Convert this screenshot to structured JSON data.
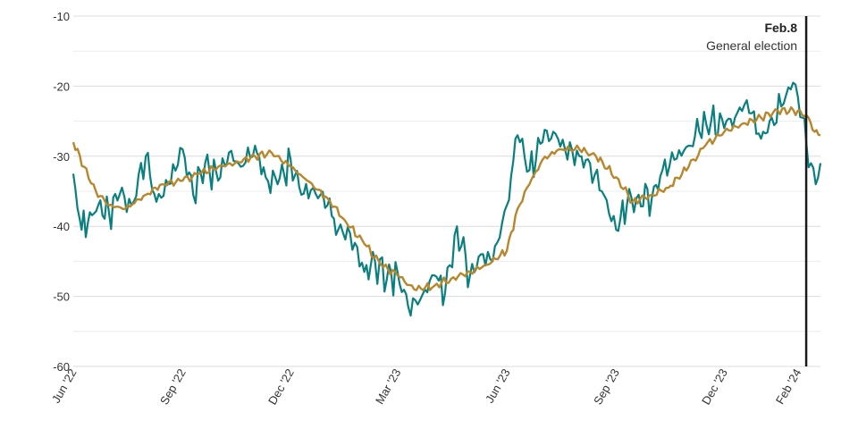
{
  "chart_data": {
    "type": "line",
    "title": "",
    "xlabel": "",
    "ylabel": "",
    "ylim": [
      -60,
      -10
    ],
    "yticks": [
      -10,
      -20,
      -30,
      -40,
      -50,
      -60
    ],
    "yticks_labeled": [
      -10,
      -20,
      -30,
      -40,
      -50,
      -60
    ],
    "grid": true,
    "xlim": [
      "2022-06-01",
      "2024-02-20"
    ],
    "xticks": [
      {
        "date": "2022-06-01",
        "label": "Jun '22"
      },
      {
        "date": "2022-09-01",
        "label": "Sep '22"
      },
      {
        "date": "2022-12-01",
        "label": "Dec '22"
      },
      {
        "date": "2023-03-01",
        "label": "Mar '23"
      },
      {
        "date": "2023-06-01",
        "label": "Jun '23"
      },
      {
        "date": "2023-09-01",
        "label": "Sep '23"
      },
      {
        "date": "2023-12-01",
        "label": "Dec '23"
      },
      {
        "date": "2024-02-01",
        "label": "Feb '24"
      }
    ],
    "annotation": {
      "date": "2024-02-08",
      "title": "Feb.8",
      "subtitle": "General election",
      "color": "#1a1a1a"
    },
    "series": [
      {
        "color": "#0a7f7f",
        "points": [
          [
            "2022-06-01",
            -32.5
          ],
          [
            "2022-06-08",
            -40.5
          ],
          [
            "2022-06-15",
            -38.0
          ],
          [
            "2022-06-22",
            -37.0
          ],
          [
            "2022-07-01",
            -38.0
          ],
          [
            "2022-07-10",
            -35.5
          ],
          [
            "2022-07-20",
            -37.0
          ],
          [
            "2022-08-01",
            -30.0
          ],
          [
            "2022-08-10",
            -36.5
          ],
          [
            "2022-08-20",
            -34.0
          ],
          [
            "2022-09-01",
            -29.0
          ],
          [
            "2022-09-10",
            -35.5
          ],
          [
            "2022-09-20",
            -31.0
          ],
          [
            "2022-10-01",
            -33.5
          ],
          [
            "2022-10-10",
            -29.5
          ],
          [
            "2022-10-20",
            -31.5
          ],
          [
            "2022-11-01",
            -28.5
          ],
          [
            "2022-11-10",
            -33.0
          ],
          [
            "2022-11-20",
            -34.0
          ],
          [
            "2022-12-01",
            -30.5
          ],
          [
            "2022-12-10",
            -35.5
          ],
          [
            "2022-12-20",
            -34.5
          ],
          [
            "2023-01-01",
            -37.0
          ],
          [
            "2023-01-10",
            -40.5
          ],
          [
            "2023-01-20",
            -41.0
          ],
          [
            "2023-02-01",
            -46.5
          ],
          [
            "2023-02-10",
            -45.0
          ],
          [
            "2023-02-20",
            -47.5
          ],
          [
            "2023-03-01",
            -46.5
          ],
          [
            "2023-03-10",
            -51.5
          ],
          [
            "2023-03-20",
            -50.5
          ],
          [
            "2023-04-01",
            -47.0
          ],
          [
            "2023-04-10",
            -49.5
          ],
          [
            "2023-04-20",
            -40.0
          ],
          [
            "2023-05-01",
            -47.0
          ],
          [
            "2023-05-10",
            -44.0
          ],
          [
            "2023-05-20",
            -45.0
          ],
          [
            "2023-06-01",
            -37.0
          ],
          [
            "2023-06-10",
            -27.0
          ],
          [
            "2023-06-20",
            -32.0
          ],
          [
            "2023-07-01",
            -28.0
          ],
          [
            "2023-07-10",
            -26.5
          ],
          [
            "2023-07-20",
            -29.0
          ],
          [
            "2023-08-01",
            -30.0
          ],
          [
            "2023-08-10",
            -31.0
          ],
          [
            "2023-08-20",
            -35.0
          ],
          [
            "2023-09-01",
            -40.5
          ],
          [
            "2023-09-10",
            -37.0
          ],
          [
            "2023-09-20",
            -35.5
          ],
          [
            "2023-10-01",
            -36.0
          ],
          [
            "2023-10-10",
            -32.0
          ],
          [
            "2023-10-20",
            -30.5
          ],
          [
            "2023-11-01",
            -28.5
          ],
          [
            "2023-11-10",
            -26.5
          ],
          [
            "2023-11-20",
            -25.0
          ],
          [
            "2023-12-01",
            -26.0
          ],
          [
            "2023-12-10",
            -24.5
          ],
          [
            "2023-12-20",
            -22.0
          ],
          [
            "2024-01-01",
            -27.5
          ],
          [
            "2024-01-10",
            -24.5
          ],
          [
            "2024-01-20",
            -22.5
          ],
          [
            "2024-01-28",
            -19.5
          ],
          [
            "2024-02-01",
            -21.5
          ],
          [
            "2024-02-05",
            -24.5
          ],
          [
            "2024-02-08",
            -28.0
          ],
          [
            "2024-02-12",
            -31.0
          ],
          [
            "2024-02-16",
            -34.0
          ],
          [
            "2024-02-20",
            -31.0
          ]
        ]
      },
      {
        "color": "#b8862b",
        "points": [
          [
            "2022-06-01",
            -28.0
          ],
          [
            "2022-06-10",
            -31.5
          ],
          [
            "2022-06-20",
            -35.0
          ],
          [
            "2022-07-01",
            -37.0
          ],
          [
            "2022-07-15",
            -37.5
          ],
          [
            "2022-08-01",
            -35.5
          ],
          [
            "2022-08-15",
            -34.0
          ],
          [
            "2022-09-01",
            -33.5
          ],
          [
            "2022-09-15",
            -32.5
          ],
          [
            "2022-10-01",
            -31.5
          ],
          [
            "2022-10-15",
            -31.0
          ],
          [
            "2022-11-01",
            -30.0
          ],
          [
            "2022-11-15",
            -29.5
          ],
          [
            "2022-12-01",
            -31.5
          ],
          [
            "2022-12-15",
            -33.5
          ],
          [
            "2023-01-01",
            -36.0
          ],
          [
            "2023-01-15",
            -39.0
          ],
          [
            "2023-02-01",
            -42.5
          ],
          [
            "2023-02-15",
            -45.5
          ],
          [
            "2023-03-01",
            -47.0
          ],
          [
            "2023-03-15",
            -49.0
          ],
          [
            "2023-04-01",
            -48.5
          ],
          [
            "2023-04-15",
            -47.5
          ],
          [
            "2023-05-01",
            -46.5
          ],
          [
            "2023-05-15",
            -45.5
          ],
          [
            "2023-06-01",
            -43.5
          ],
          [
            "2023-06-10",
            -37.5
          ],
          [
            "2023-06-20",
            -34.0
          ],
          [
            "2023-07-01",
            -30.5
          ],
          [
            "2023-07-15",
            -29.0
          ],
          [
            "2023-08-01",
            -29.0
          ],
          [
            "2023-08-15",
            -30.0
          ],
          [
            "2023-09-01",
            -33.0
          ],
          [
            "2023-09-15",
            -36.5
          ],
          [
            "2023-10-01",
            -35.5
          ],
          [
            "2023-10-15",
            -34.5
          ],
          [
            "2023-11-01",
            -31.5
          ],
          [
            "2023-11-15",
            -28.5
          ],
          [
            "2023-12-01",
            -26.5
          ],
          [
            "2023-12-15",
            -25.5
          ],
          [
            "2024-01-01",
            -24.5
          ],
          [
            "2024-01-15",
            -23.5
          ],
          [
            "2024-02-01",
            -23.5
          ],
          [
            "2024-02-10",
            -24.5
          ],
          [
            "2024-02-15",
            -26.5
          ],
          [
            "2024-02-20",
            -27.0
          ]
        ]
      }
    ]
  }
}
